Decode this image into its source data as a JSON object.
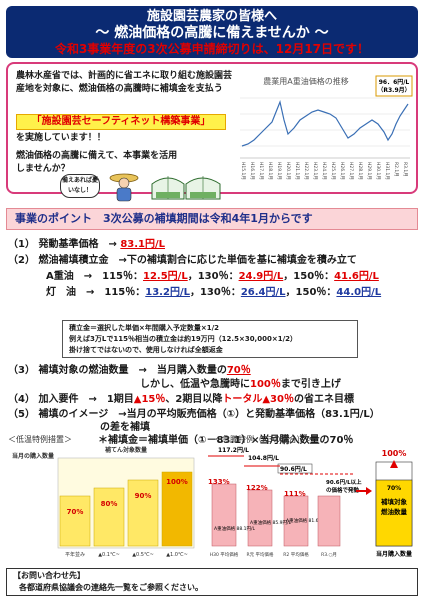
{
  "banner": {
    "line1": "施設園芸農家の皆様へ",
    "line2": "～ 燃油価格の高騰に備えませんか ～",
    "line3": "令和3事業年度の3次公募申請締切りは、12月17日です！"
  },
  "intro": {
    "para1": "農林水産省では、計画的に省エネに取り組む施設園芸産地を対象に、燃油価格の高騰時に補填金を支払う",
    "program": "「施設園芸セーフティネット構築事業」",
    "para2": "を実施しています！！",
    "para3": "燃油価格の高騰に備えて、本事業を活用しませんか？",
    "bubble": "備えあれば憂いなし！"
  },
  "price_chart": {
    "title": "農業用A重油価格の推移",
    "callout": "96．6円/L（R3.9月）",
    "x_ticks": [
      "H15.1月",
      "H16.1月",
      "H17.1月",
      "H18.1月",
      "H19.1月",
      "H20.1月",
      "H21.1月",
      "H22.1月",
      "H23.1月",
      "H24.1月",
      "H25.1月",
      "H26.1月",
      "H27.1月",
      "H28.1月",
      "H29.1月",
      "H30.1月",
      "H31.1月",
      "R2.1月",
      "R3.1月"
    ],
    "colors": {
      "line": "#3a6fb5",
      "callout_border": "#d99a00"
    }
  },
  "points": {
    "header": "事業のポイント　3次公募の補填期間は令和4年1月からです",
    "item1_label": "（1） 発動基準価格　→",
    "item1_value": "83.1円/L",
    "item2_label": "（2） 燃油補填積立金　→下の補填割合に応じた単価を基に補填金を積み立て",
    "a_label": "A重油　→　115％：",
    "a_v1": "12.5円/L",
    "a_sep1": "，130％：",
    "a_v2": "24.9円/L",
    "a_sep2": "，150％：",
    "a_v3": "41.6円/L",
    "k_label": "灯　油　→　115％：",
    "k_v1": "13.2円/L",
    "k_sep1": "，130％：",
    "k_v2": "26.4円/L",
    "k_sep2": "，150％：",
    "k_v3": "44.0円/L",
    "formula1": "積立金＝選択した単価×年間購入予定数量×1/2",
    "formula2": "例えば3万Lで115％相当の積立金は約19万円（12.5×30,000×1/2）",
    "formula3": "掛け捨てではないので、使用しなければ全額返金",
    "item3_label": "（3） 補填対象の燃油数量　→　当月購入数量の",
    "item3_value": "70％",
    "item3_sub_pre": "しかし、低温や急騰時に",
    "item3_sub_val": "100％",
    "item3_sub_post": "まで引き上げ",
    "item4_pre": "（4） 加入要件　→　1期目",
    "item4_v1": "▲15％",
    "item4_mid": "、2期目以降",
    "item4_v2": "トータル▲30％",
    "item4_post": "の省エネ目標",
    "item5_line1": "（5） 補填のイメージ　→当月の平均販売価格（①）と発動基準価格（83.1円/L）",
    "item5_line2": "の差を補填",
    "item5_formula": "＊補填金＝補填単価（①－83.1）×当月購入数量の70％"
  },
  "low_temp": {
    "label": "＜低温特例措置＞",
    "ylabel": "当月の購入数量",
    "title": "補てん対象数量",
    "bars": [
      "70%",
      "80%",
      "90%",
      "100%"
    ],
    "x_labels": [
      "平年並み",
      "▲0.1℃~",
      "▲0.5℃~",
      "▲1.0℃~"
    ],
    "colors": {
      "base": "#ffe866",
      "step": "#fff5a8",
      "accent": "#f2b800"
    }
  },
  "emergency": {
    "label": "＜急騰特例（R3の場合）＞",
    "v1": "117.2円/L",
    "v2": "104.8円/L",
    "v3": "90.6円/L",
    "p1": "133%",
    "p2": "122%",
    "p3": "111%",
    "bar_label_a": "A重油価格 88.1円/L",
    "bar_label_b": "A重油価格 85.9円/L",
    "bar_label_c": "A重油価格 81.6円/L",
    "x_labels": [
      "H30 平均価格",
      "R元 平均価格",
      "R2 平均価格",
      "R3.○月"
    ],
    "note1": "90.6円/L以上",
    "note2": "の価格で発動",
    "top": "100%",
    "side1": "補填対象",
    "side2": "燃油数量",
    "side3": "70%",
    "side_bottom": "当月購入数量",
    "colors": {
      "bar": "#f6b3b8",
      "side": "#ffd800",
      "line": "#e00000"
    }
  },
  "contact": {
    "title": "【お問い合わせ先】",
    "body": "各都道府県協議会の連絡先一覧をご参照ください。"
  }
}
